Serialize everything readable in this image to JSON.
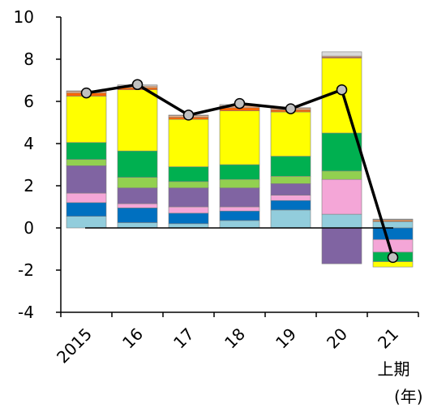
{
  "chart_data": {
    "type": "bar",
    "stacked": true,
    "with_line": true,
    "categories": [
      "2015",
      "16",
      "17",
      "18",
      "19",
      "20",
      "21"
    ],
    "category_sublabels": [
      "",
      "",
      "",
      "",
      "",
      "",
      "上期"
    ],
    "unit_label": "(年)",
    "ylim": [
      -4,
      10
    ],
    "yticks": [
      -4,
      -2,
      0,
      2,
      4,
      6,
      8,
      10
    ],
    "ytick_labels": [
      "-4",
      "-2",
      "0",
      "2",
      "4",
      "6",
      "8",
      "10"
    ],
    "series": [
      {
        "color": "#92cddc",
        "values": [
          0.55,
          0.25,
          0.2,
          0.35,
          0.85,
          0.65,
          0.3
        ]
      },
      {
        "color": "#0070c0",
        "values": [
          0.65,
          0.7,
          0.5,
          0.45,
          0.45,
          0.0,
          -0.55
        ]
      },
      {
        "color": "#f4a6d7",
        "values": [
          0.45,
          0.2,
          0.3,
          0.2,
          0.25,
          1.65,
          -0.6
        ]
      },
      {
        "color": "#8064a2",
        "values": [
          1.3,
          0.75,
          0.9,
          0.9,
          0.55,
          -1.7,
          0.0
        ]
      },
      {
        "color": "#92d050",
        "values": [
          0.3,
          0.5,
          0.3,
          0.4,
          0.35,
          0.4,
          0.0
        ]
      },
      {
        "color": "#00b050",
        "values": [
          0.8,
          1.25,
          0.7,
          0.7,
          0.95,
          1.8,
          -0.45
        ]
      },
      {
        "color": "#ffff00",
        "values": [
          2.2,
          2.9,
          2.25,
          2.55,
          2.1,
          3.55,
          -0.25
        ]
      },
      {
        "color": "#ff6600",
        "values": [
          0.15,
          0.1,
          0.1,
          0.15,
          0.1,
          0.05,
          0.05
        ]
      },
      {
        "color": "#f4b183",
        "values": [
          0.08,
          0.08,
          0.08,
          0.1,
          0.08,
          0.05,
          0.05
        ]
      },
      {
        "color": "#d9d9d9",
        "values": [
          0.02,
          0.05,
          0.02,
          0.05,
          0.02,
          0.2,
          0.02
        ]
      }
    ],
    "line": {
      "values": [
        6.4,
        6.8,
        5.35,
        5.9,
        5.65,
        6.55,
        -1.4
      ],
      "color": "#000000",
      "marker_color": "#c0c0c0"
    },
    "grid": false
  }
}
